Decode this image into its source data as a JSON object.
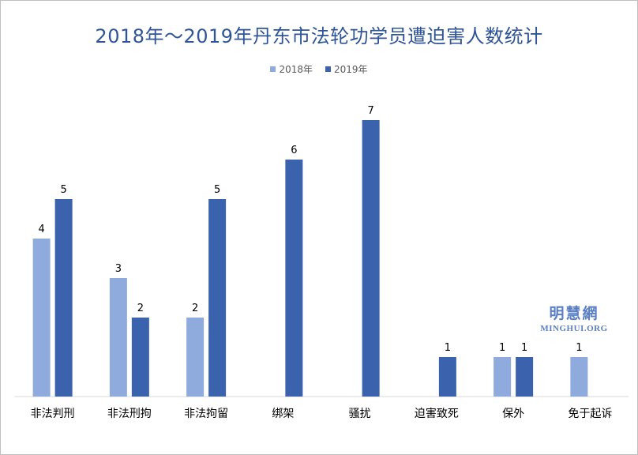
{
  "chart_data": {
    "type": "bar",
    "title": "2018年～2019年丹东市法轮功学员遭迫害人数统计",
    "categories": [
      "非法判刑",
      "非法刑拘",
      "非法拘留",
      "绑架",
      "骚扰",
      "迫害致死",
      "保外",
      "免于起诉"
    ],
    "series": [
      {
        "name": "2018年",
        "color": "#8faadc",
        "values": [
          4,
          3,
          2,
          null,
          null,
          null,
          1,
          1
        ]
      },
      {
        "name": "2019年",
        "color": "#3a62ad",
        "values": [
          5,
          2,
          5,
          6,
          7,
          1,
          1,
          null
        ]
      }
    ],
    "ylim": [
      0,
      7
    ],
    "grid": false,
    "legend_position": "top"
  },
  "watermark": {
    "text_cn": "明慧網",
    "text_en": "MINGHUI.ORG"
  }
}
